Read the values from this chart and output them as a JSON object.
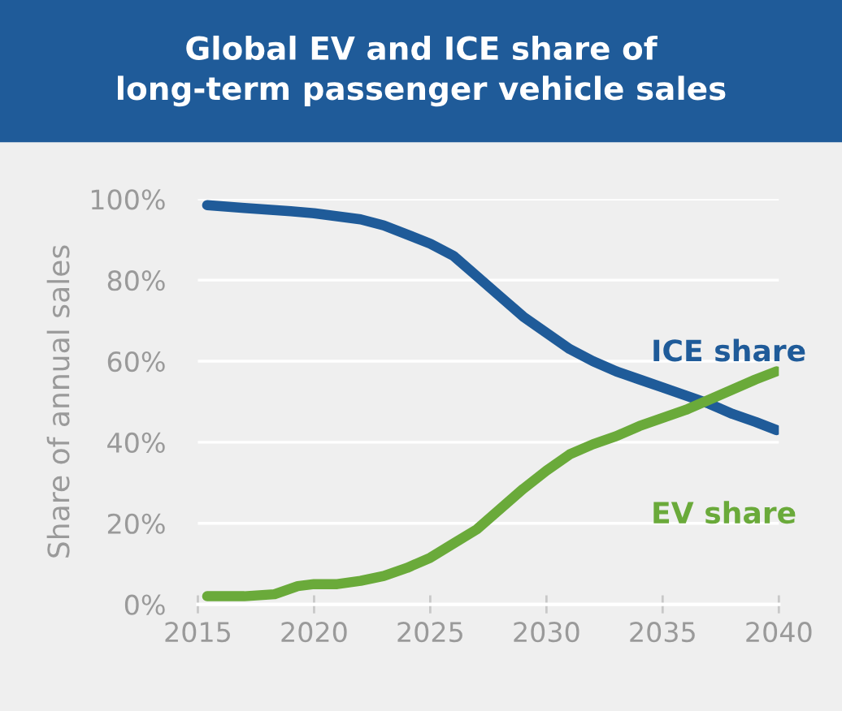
{
  "chart_data": {
    "type": "line",
    "title": "Global EV and ICE share of\nlong-term passenger vehicle sales",
    "ylabel": "Share of annual sales",
    "xlim": [
      2015,
      2040
    ],
    "xticks": [
      2015,
      2020,
      2025,
      2030,
      2035,
      2040
    ],
    "ylim": [
      0,
      100
    ],
    "yticks": [
      {
        "value": 0,
        "label": "0%"
      },
      {
        "value": 20,
        "label": "20%"
      },
      {
        "value": 40,
        "label": "40%"
      },
      {
        "value": 60,
        "label": "60%"
      },
      {
        "value": 80,
        "label": "80%"
      },
      {
        "value": 100,
        "label": "100%"
      }
    ],
    "grid": "y",
    "legend": false,
    "marker": "none",
    "line_style": "solid",
    "series": [
      {
        "name": "ICE share",
        "color": "#1f5b99",
        "x": [
          2015.4,
          2017,
          2019,
          2020,
          2022,
          2023,
          2025,
          2026,
          2027,
          2028,
          2029,
          2030,
          2031,
          2032,
          2033,
          2034,
          2035,
          2036,
          2037,
          2038,
          2039,
          2039.9
        ],
        "values": [
          98.5,
          97.8,
          97,
          96.5,
          95,
          93.5,
          89,
          86,
          81,
          76,
          71,
          67,
          63,
          60,
          57.5,
          55.5,
          53.5,
          51.5,
          49.5,
          47,
          45,
          43
        ]
      },
      {
        "name": "EV share",
        "color": "#6aaa3a",
        "x": [
          2015.4,
          2017,
          2018.3,
          2019.3,
          2020,
          2021,
          2022,
          2023,
          2024,
          2025,
          2026,
          2027,
          2028,
          2029,
          2030,
          2031,
          2032,
          2033,
          2034,
          2035,
          2036,
          2037,
          2038,
          2039,
          2039.9
        ],
        "values": [
          2,
          2,
          2.5,
          4.5,
          5,
          5,
          5.8,
          7,
          9,
          11.5,
          15,
          18.5,
          23.5,
          28.5,
          33,
          37,
          39.5,
          41.5,
          44,
          46,
          48,
          50.5,
          53,
          55.5,
          57.5
        ]
      }
    ]
  }
}
